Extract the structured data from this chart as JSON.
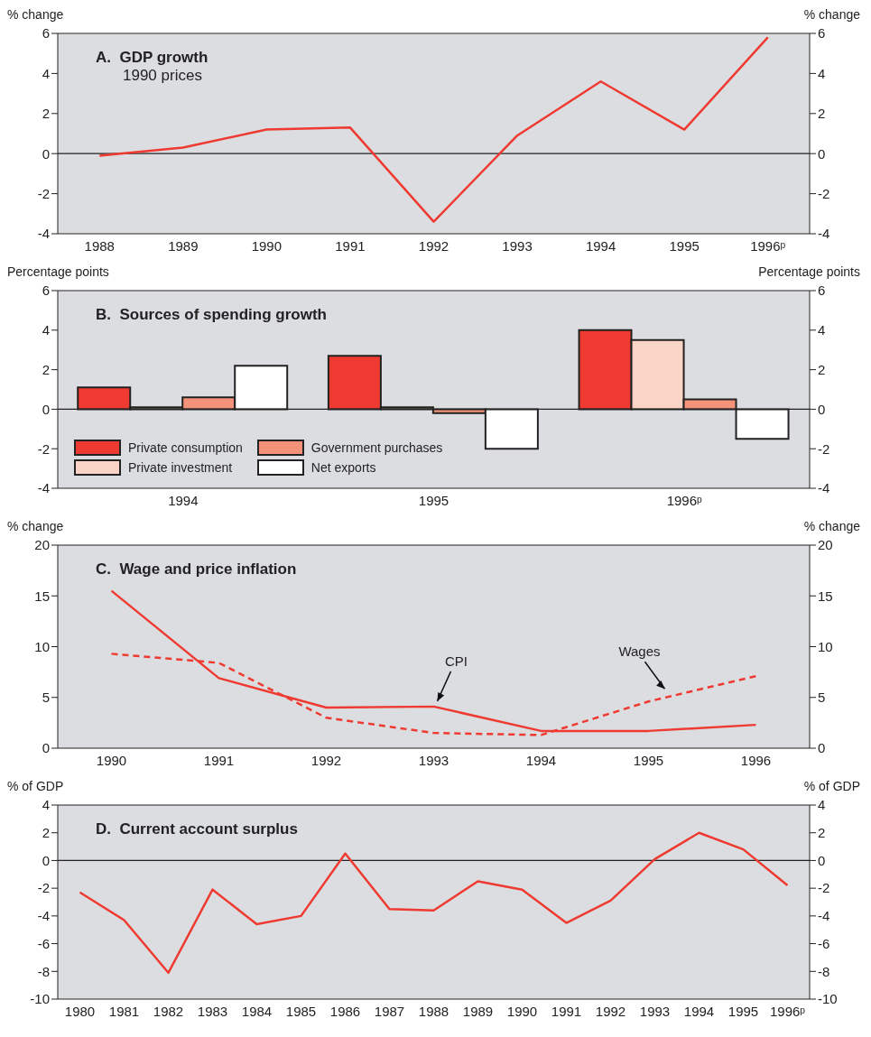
{
  "chart_data": [
    {
      "type": "line",
      "title": "A.  GDP growth",
      "subtitle": "1990 prices",
      "ylabel": "% change",
      "y2label": "% change",
      "categories": [
        "1988",
        "1989",
        "1990",
        "1991",
        "1992",
        "1993",
        "1994",
        "1995",
        "1996ᵖ"
      ],
      "series": [
        {
          "color": "#ee3a31",
          "values": [
            -0.1,
            0.3,
            1.2,
            1.3,
            -3.4,
            0.9,
            3.6,
            1.2,
            5.8
          ]
        }
      ],
      "ylim": [
        -4,
        6
      ],
      "yticks": [
        -4,
        -2,
        0,
        2,
        4,
        6
      ],
      "y2lim": [
        -4,
        6
      ],
      "y2ticks": [
        -4,
        -2,
        0,
        2,
        4,
        6
      ],
      "ref_lines": [
        {
          "axis": "y",
          "value": 0,
          "color": "#222222"
        }
      ]
    },
    {
      "type": "bar",
      "title": "B.  Sources of spending growth",
      "ylabel": "Percentage points",
      "y2label": "Percentage points",
      "categories": [
        "1994",
        "1995",
        "1996ᵖ"
      ],
      "series": [
        {
          "name": "Private consumption",
          "color": "#ee3a31",
          "values": [
            1.1,
            2.7,
            4.0
          ]
        },
        {
          "name": "Private investment",
          "color": "#fad4c6",
          "values": [
            0.1,
            0.1,
            3.5
          ]
        },
        {
          "name": "Government purchases",
          "color": "#f4937a",
          "values": [
            0.6,
            -0.2,
            0.5
          ]
        },
        {
          "name": "Net exports",
          "color": "#ffffff",
          "values": [
            2.2,
            -2.0,
            -1.5
          ]
        }
      ],
      "ylim": [
        -4,
        6
      ],
      "yticks": [
        -4,
        -2,
        0,
        2,
        4,
        6
      ],
      "y2lim": [
        -4,
        6
      ],
      "y2ticks": [
        -4,
        -2,
        0,
        2,
        4,
        6
      ],
      "ref_lines": [
        {
          "axis": "y",
          "value": 0,
          "color": "#222222"
        }
      ],
      "legend": "bottom left"
    },
    {
      "type": "line",
      "title": "C.  Wage and price inflation",
      "ylabel": "% change",
      "y2label": "% change",
      "categories": [
        "1990",
        "1991",
        "1992",
        "1993",
        "1994",
        "1995",
        "1996"
      ],
      "series": [
        {
          "name": "CPI",
          "color": "#ee3a31",
          "line_style": "solid",
          "values": [
            15.5,
            6.9,
            4.0,
            4.1,
            1.7,
            1.7,
            2.3
          ]
        },
        {
          "name": "Wages",
          "color": "#ee3a31",
          "line_style": "dashed",
          "values": [
            9.3,
            8.4,
            3.0,
            1.5,
            1.3,
            4.6,
            7.1
          ]
        }
      ],
      "ylim": [
        0,
        20
      ],
      "yticks": [
        0,
        5,
        10,
        15,
        20
      ],
      "y2lim": [
        0,
        20
      ],
      "y2ticks": [
        0,
        5,
        10,
        15,
        20
      ]
    },
    {
      "type": "line",
      "title": "D.  Current account surplus",
      "ylabel": "% of GDP",
      "y2label": "% of GDP",
      "categories": [
        "1980",
        "1981",
        "1982",
        "1983",
        "1984",
        "1985",
        "1986",
        "1987",
        "1988",
        "1989",
        "1990",
        "1991",
        "1992",
        "1993",
        "1994",
        "1995",
        "1996ᵖ"
      ],
      "series": [
        {
          "color": "#ee3a31",
          "values": [
            -2.3,
            -4.3,
            -8.1,
            -2.1,
            -4.6,
            -4.0,
            0.5,
            -3.5,
            -3.6,
            -1.5,
            -2.1,
            -4.5,
            -2.9,
            0.1,
            2.0,
            0.8,
            -1.8
          ]
        }
      ],
      "ylim": [
        -10,
        4
      ],
      "yticks": [
        -10,
        -8,
        -6,
        -4,
        -2,
        0,
        2,
        4
      ],
      "y2lim": [
        -10,
        4
      ],
      "y2ticks": [
        -10,
        -8,
        -6,
        -4,
        -2,
        0,
        2,
        4
      ],
      "ref_lines": [
        {
          "axis": "y",
          "value": 0,
          "color": "#222222"
        }
      ]
    }
  ]
}
